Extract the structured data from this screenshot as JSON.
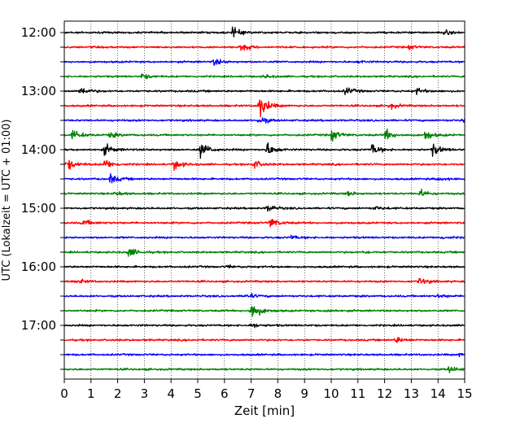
{
  "chart_data": {
    "type": "line",
    "xlabel": "Zeit  [min]",
    "ylabel": "UTC (Lokalzeit = UTC + 01:00)",
    "xlim": [
      0,
      15
    ],
    "x_ticks": [
      0,
      1,
      2,
      3,
      4,
      5,
      6,
      7,
      8,
      9,
      10,
      11,
      12,
      13,
      14,
      15
    ],
    "x_tick_labels": [
      "0",
      "1",
      "2",
      "3",
      "4",
      "5",
      "6",
      "7",
      "8",
      "9",
      "10",
      "11",
      "12",
      "13",
      "14",
      "15"
    ],
    "y_tick_labels": [
      "12:00",
      "13:00",
      "14:00",
      "15:00",
      "16:00",
      "17:00"
    ],
    "grid": {
      "x": true,
      "style": "dotted"
    },
    "colors": [
      "#000000",
      "#ff0000",
      "#0000ff",
      "#008000"
    ],
    "trace_interval_minutes": 15,
    "traces": [
      {
        "start": "12:00",
        "color": "#000000",
        "events": [
          {
            "t": 6.3,
            "amp": 1.2
          },
          {
            "t": 14.2,
            "amp": 0.6
          }
        ]
      },
      {
        "start": "12:15",
        "color": "#ff0000",
        "events": [
          {
            "t": 6.6,
            "amp": 1.1
          },
          {
            "t": 12.9,
            "amp": 0.5
          }
        ]
      },
      {
        "start": "12:30",
        "color": "#0000ff",
        "events": [
          {
            "t": 5.6,
            "amp": 0.9
          },
          {
            "t": 11.0,
            "amp": 0.3
          }
        ]
      },
      {
        "start": "12:45",
        "color": "#008000",
        "events": [
          {
            "t": 2.9,
            "amp": 0.7
          },
          {
            "t": 7.5,
            "amp": 0.4
          }
        ]
      },
      {
        "start": "13:00",
        "color": "#000000",
        "events": [
          {
            "t": 0.6,
            "amp": 1.1
          },
          {
            "t": 10.5,
            "amp": 1.0
          },
          {
            "t": 13.2,
            "amp": 0.7
          }
        ]
      },
      {
        "start": "13:15",
        "color": "#ff0000",
        "events": [
          {
            "t": 7.3,
            "amp": 3.0
          },
          {
            "t": 12.2,
            "amp": 0.7
          }
        ]
      },
      {
        "start": "13:30",
        "color": "#0000ff",
        "events": [
          {
            "t": 7.3,
            "amp": 1.0
          },
          {
            "t": 14.9,
            "amp": 0.8
          }
        ]
      },
      {
        "start": "13:45",
        "color": "#008000",
        "events": [
          {
            "t": 0.3,
            "amp": 1.3
          },
          {
            "t": 1.7,
            "amp": 0.8
          },
          {
            "t": 10.0,
            "amp": 1.5
          },
          {
            "t": 12.0,
            "amp": 1.5
          },
          {
            "t": 13.5,
            "amp": 1.3
          }
        ]
      },
      {
        "start": "14:00",
        "color": "#000000",
        "events": [
          {
            "t": 1.5,
            "amp": 1.4
          },
          {
            "t": 5.1,
            "amp": 2.0
          },
          {
            "t": 7.6,
            "amp": 1.6
          },
          {
            "t": 11.5,
            "amp": 1.5
          },
          {
            "t": 13.8,
            "amp": 1.5
          }
        ]
      },
      {
        "start": "14:15",
        "color": "#ff0000",
        "events": [
          {
            "t": 0.1,
            "amp": 1.4
          },
          {
            "t": 1.5,
            "amp": 1.3
          },
          {
            "t": 4.1,
            "amp": 1.2
          },
          {
            "t": 7.1,
            "amp": 1.0
          }
        ]
      },
      {
        "start": "14:30",
        "color": "#0000ff",
        "events": [
          {
            "t": 1.7,
            "amp": 1.2
          },
          {
            "t": 14.0,
            "amp": 0.4
          }
        ]
      },
      {
        "start": "14:45",
        "color": "#008000",
        "events": [
          {
            "t": 1.9,
            "amp": 0.5
          },
          {
            "t": 10.6,
            "amp": 0.6
          },
          {
            "t": 13.3,
            "amp": 1.0
          }
        ]
      },
      {
        "start": "15:00",
        "color": "#000000",
        "events": [
          {
            "t": 7.6,
            "amp": 0.9
          },
          {
            "t": 11.6,
            "amp": 0.5
          }
        ]
      },
      {
        "start": "15:15",
        "color": "#ff0000",
        "events": [
          {
            "t": 0.7,
            "amp": 0.8
          },
          {
            "t": 7.7,
            "amp": 1.3
          }
        ]
      },
      {
        "start": "15:30",
        "color": "#0000ff",
        "events": [
          {
            "t": 8.5,
            "amp": 0.5
          },
          {
            "t": 14.1,
            "amp": 0.3
          }
        ]
      },
      {
        "start": "15:45",
        "color": "#008000",
        "events": [
          {
            "t": 2.4,
            "amp": 1.2
          },
          {
            "t": 11.2,
            "amp": 0.3
          }
        ]
      },
      {
        "start": "16:00",
        "color": "#000000",
        "events": [
          {
            "t": 6.1,
            "amp": 0.3
          }
        ]
      },
      {
        "start": "16:15",
        "color": "#ff0000",
        "events": [
          {
            "t": 0.5,
            "amp": 0.5
          },
          {
            "t": 13.3,
            "amp": 0.9
          }
        ]
      },
      {
        "start": "16:30",
        "color": "#0000ff",
        "events": [
          {
            "t": 6.8,
            "amp": 0.8
          },
          {
            "t": 14.0,
            "amp": 0.4
          }
        ]
      },
      {
        "start": "16:45",
        "color": "#008000",
        "events": [
          {
            "t": 7.0,
            "amp": 2.5
          },
          {
            "t": 9.8,
            "amp": 0.4
          }
        ]
      },
      {
        "start": "17:00",
        "color": "#000000",
        "events": [
          {
            "t": 7.0,
            "amp": 0.6
          }
        ]
      },
      {
        "start": "17:15",
        "color": "#ff0000",
        "events": [
          {
            "t": 12.4,
            "amp": 0.8
          }
        ]
      },
      {
        "start": "17:30",
        "color": "#0000ff",
        "events": [
          {
            "t": 14.8,
            "amp": 0.4
          }
        ]
      },
      {
        "start": "17:45",
        "color": "#008000",
        "events": [
          {
            "t": 14.4,
            "amp": 0.8
          }
        ]
      }
    ]
  }
}
